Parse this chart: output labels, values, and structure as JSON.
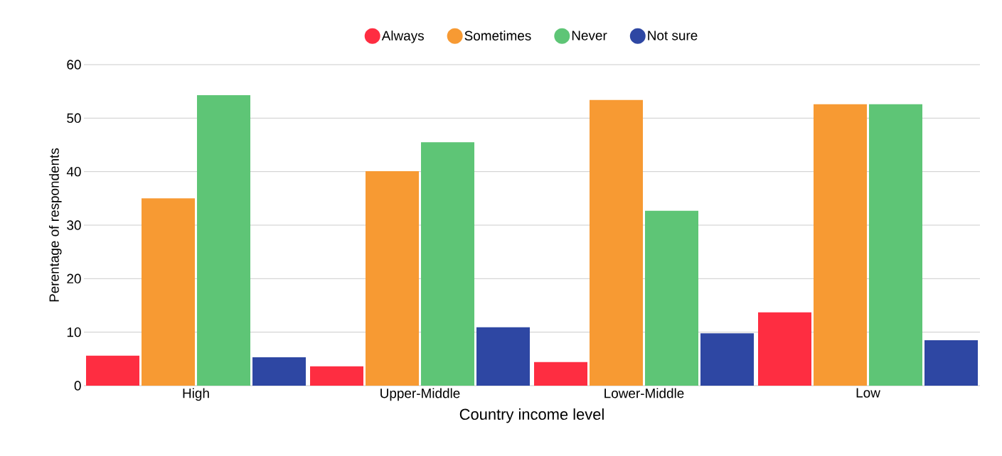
{
  "chart_data": {
    "type": "bar",
    "xlabel": "Country income level",
    "ylabel": "Perentage of respondents",
    "categories": [
      "High",
      "Upper-Middle",
      "Lower-Middle",
      "Low"
    ],
    "series": [
      {
        "name": "Always",
        "color": "#fe2d41",
        "values": [
          5.6,
          3.6,
          4.4,
          13.7
        ]
      },
      {
        "name": "Sometimes",
        "color": "#f79a33",
        "values": [
          35.0,
          40.1,
          53.4,
          52.6
        ]
      },
      {
        "name": "Never",
        "color": "#5ec576",
        "values": [
          54.3,
          45.5,
          32.7,
          52.6
        ]
      },
      {
        "name": "Not sure",
        "color": "#2e47a3",
        "values": [
          5.3,
          10.9,
          9.8,
          8.5
        ]
      }
    ],
    "ylim": [
      0,
      60
    ],
    "yticks": [
      0,
      10,
      20,
      30,
      40,
      50,
      60
    ],
    "grid": "y",
    "legend": "top"
  }
}
